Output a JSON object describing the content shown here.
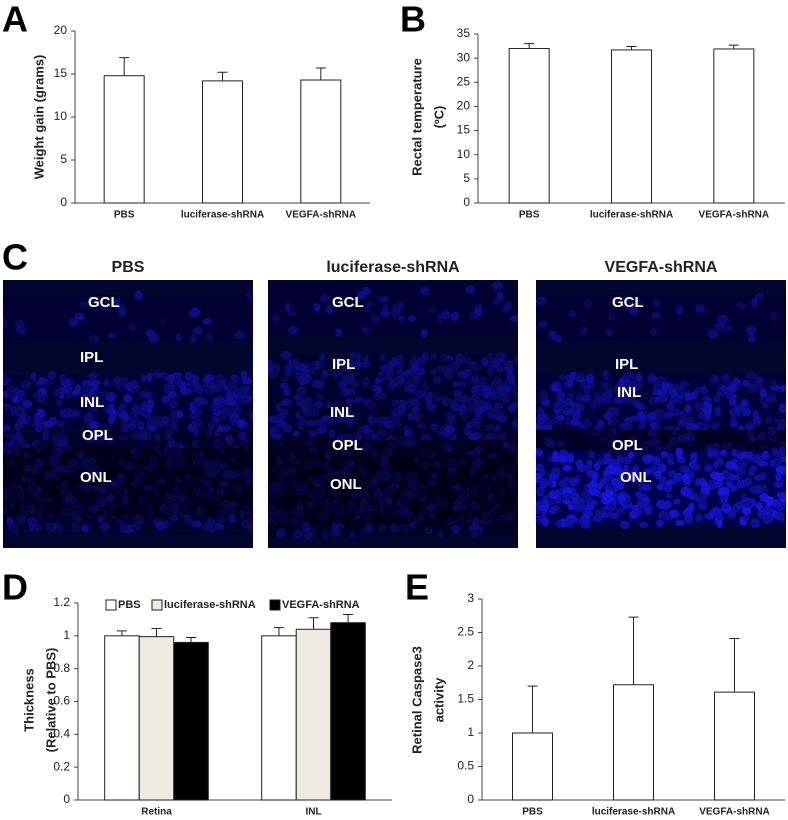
{
  "chart_data": [
    {
      "panel": "A",
      "type": "bar",
      "y_label": [
        "Weight gain (grams)"
      ],
      "categories": [
        "PBS",
        "luciferase-shRNA",
        "VEGFA-shRNA"
      ],
      "values": [
        14.8,
        14.2,
        14.3
      ],
      "errors": [
        2.1,
        1.0,
        1.4
      ],
      "color": "#ffffff",
      "ylim": [
        0,
        20
      ],
      "yticks": [
        0,
        5,
        10,
        15,
        20
      ]
    },
    {
      "panel": "B",
      "type": "bar",
      "y_label": [
        "Rectal temperature",
        "(ºC)"
      ],
      "categories": [
        "PBS",
        "luciferase-shRNA",
        "VEGFA-shRNA"
      ],
      "values": [
        32.0,
        31.7,
        31.9
      ],
      "errors": [
        1.0,
        0.7,
        0.8
      ],
      "color": "#ffffff",
      "ylim": [
        0,
        35
      ],
      "yticks": [
        0,
        5,
        10,
        15,
        20,
        25,
        30,
        35
      ]
    },
    {
      "panel": "D",
      "type": "bar",
      "y_label": [
        "Thickness",
        "(Relative to PBS)"
      ],
      "categories": [
        "Retina",
        "INL"
      ],
      "series": [
        {
          "name": "PBS",
          "color": "#ffffff",
          "values": [
            1.0,
            1.0
          ],
          "errors": [
            0.03,
            0.05
          ]
        },
        {
          "name": "luciferase-shRNA",
          "color": "#eeebe0",
          "values": [
            0.995,
            1.04
          ],
          "errors": [
            0.05,
            0.07
          ]
        },
        {
          "name": "VEGFA-shRNA",
          "color": "#000000",
          "values": [
            0.96,
            1.08
          ],
          "errors": [
            0.03,
            0.05
          ]
        }
      ],
      "ylim": [
        0,
        1.2
      ],
      "yticks": [
        0,
        0.2,
        0.4,
        0.6,
        0.8,
        1,
        1.2
      ],
      "legend": "top"
    },
    {
      "panel": "E",
      "type": "bar",
      "y_label": [
        "Retinal Caspase3",
        "activity"
      ],
      "categories": [
        "PBS",
        "luciferase-shRNA",
        "VEGFA-shRNA"
      ],
      "values": [
        1.0,
        1.72,
        1.61
      ],
      "errors": [
        0.7,
        1.01,
        0.8
      ],
      "color": "#ffffff",
      "ylim": [
        0,
        3
      ],
      "yticks": [
        0,
        0.5,
        1,
        1.5,
        2,
        2.5,
        3
      ]
    }
  ],
  "micrograph": {
    "panel": "C",
    "images": [
      {
        "title": "PBS",
        "layers": [
          "GCL",
          "IPL",
          "INL",
          "OPL",
          "ONL"
        ]
      },
      {
        "title": "luciferase-shRNA",
        "layers": [
          "GCL",
          "IPL",
          "INL",
          "OPL",
          "ONL"
        ]
      },
      {
        "title": "VEGFA-shRNA",
        "layers": [
          "GCL",
          "IPL",
          "INL",
          "OPL",
          "ONL"
        ]
      }
    ]
  }
}
